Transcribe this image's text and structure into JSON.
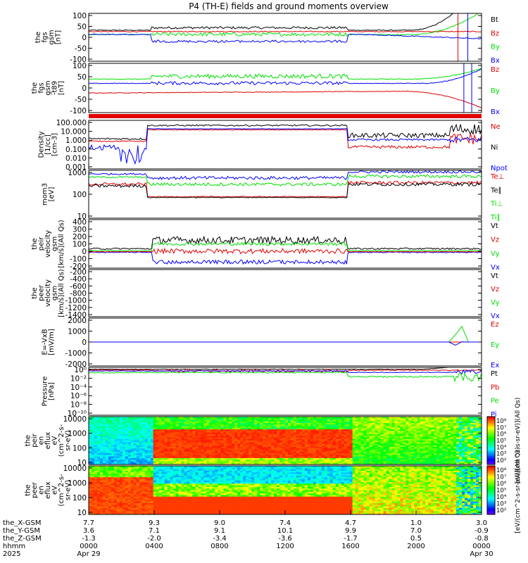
{
  "title": "P4 (TH-E) fields and ground moments overview",
  "colors": {
    "black": "#000000",
    "red": "#e00000",
    "green": "#00e000",
    "blue": "#0000ff"
  },
  "chart_data": {
    "type": "line",
    "x_range": [
      "2025-04-29 00:00",
      "2025-04-30 00:00"
    ],
    "panels": [
      {
        "id": "fgs",
        "ylabel": [
          "the",
          "fgs",
          "gsm",
          "[nT]"
        ],
        "ylim": [
          -100,
          100
        ],
        "yticks": [
          "100",
          "50",
          "0",
          "-50",
          "-100"
        ],
        "legend": [
          "Bt",
          "Bz",
          "By",
          "Bx"
        ],
        "legend_colors": [
          "black",
          "red",
          "green",
          "blue"
        ]
      },
      {
        "id": "fgs-t89",
        "ylabel": [
          "the",
          "fgs",
          "gsm",
          "-t89",
          "[nT]"
        ],
        "ylim": [
          -130,
          100
        ],
        "yticks": [
          "100",
          "50",
          "0",
          "-50",
          "-100"
        ],
        "legend": [
          "Bz",
          "By",
          "Bx"
        ],
        "legend_colors": [
          "red",
          "green",
          "blue"
        ]
      },
      {
        "id": "density",
        "ylabel": [
          "Density",
          "[1/cc]",
          "[cm-3]"
        ],
        "ylim": [
          0.001,
          100
        ],
        "scale": "log",
        "yticks": [
          "100.000",
          "10.000",
          "1.000",
          "0.100",
          "0.010",
          "0.001"
        ],
        "legend": [
          "Ne",
          "Ni",
          "Npot"
        ],
        "legend_colors": [
          "red",
          "black",
          "blue"
        ]
      },
      {
        "id": "temperature",
        "ylabel": [
          "mom3",
          "[eV]"
        ],
        "ylim": [
          3,
          3000
        ],
        "scale": "log",
        "yticks": [
          "1000",
          "100",
          "10"
        ],
        "legend": [
          "Te⊥",
          "Te∥",
          "Ti⊥",
          "Ti∥"
        ],
        "legend_colors": [
          "red",
          "black",
          "green",
          "green"
        ]
      },
      {
        "id": "peir-velocity",
        "ylabel": [
          "the",
          "peir",
          "velocity",
          "gsm",
          "[km/s](All Qs)"
        ],
        "ylim": [
          -200,
          400
        ],
        "yticks": [
          "400",
          "300",
          "200",
          "100",
          "0",
          "-100",
          "-200"
        ],
        "legend": [
          "Vt",
          "Vz",
          "Vy",
          "Vx"
        ],
        "legend_colors": [
          "black",
          "red",
          "green",
          "blue"
        ]
      },
      {
        "id": "peer-velocity",
        "ylabel": [
          "the",
          "peer",
          "velocity",
          "gsm",
          "[km/s](All Qs)"
        ],
        "ylim": [
          -1400,
          -100
        ],
        "yticks": [
          "-200",
          "-400",
          "-600",
          "-800",
          "-1000",
          "-1200",
          "-1400"
        ],
        "legend": [
          "Vt",
          "Vz",
          "Vy",
          "Vx"
        ],
        "legend_colors": [
          "black",
          "red",
          "green",
          "blue"
        ]
      },
      {
        "id": "e-vxb",
        "ylabel": [
          "E=-VxB",
          "[mV/m]"
        ],
        "ylim": [
          -2000,
          2000
        ],
        "yticks": [
          "2000",
          "1000",
          "0",
          "-1000",
          "-2000"
        ],
        "legend": [
          "Ez",
          "Ey",
          "Ex"
        ],
        "legend_colors": [
          "red",
          "green",
          "blue"
        ]
      },
      {
        "id": "pressure",
        "ylabel": [
          "Pressure",
          "[nPa]"
        ],
        "ylim": [
          1e-10,
          1
        ],
        "scale": "log",
        "yticks": [
          "10⁰",
          "10⁻²",
          "10⁻⁴",
          "10⁻⁶",
          "10⁻⁸",
          "10⁻¹⁰"
        ],
        "legend": [
          "Pt",
          "Pb",
          "Pe",
          "Pi"
        ],
        "legend_colors": [
          "black",
          "red",
          "green",
          "blue"
        ]
      },
      {
        "id": "peir-eflux",
        "type": "heatmap",
        "ylabel": [
          "the",
          "peir",
          "en",
          "eflux",
          "eV",
          "(cm^2-s-",
          "sr-eV)"
        ],
        "ylim": [
          10,
          20000
        ],
        "yticks": [
          "10000",
          "1000",
          "100",
          "10"
        ],
        "colorbar_label": "[eV/(cm^2-s-sr-eV)](All Qs)",
        "colorbar_ticks": [
          "10⁸",
          "10⁷",
          "10⁶",
          "10⁵",
          "10⁴",
          "10³",
          "10²"
        ]
      },
      {
        "id": "peer-eflux",
        "type": "heatmap",
        "ylabel": [
          "the",
          "peer",
          "en",
          "eflux",
          "eV",
          "(cm^2-s-",
          "sr-eV)"
        ],
        "ylim": [
          10,
          20000
        ],
        "yticks": [
          "10000",
          "1000",
          "100",
          "10"
        ],
        "colorbar_label": "[eV/(cm^2-s-sr-eV)](All Qs)",
        "colorbar_ticks": [
          "10⁸",
          "10⁷",
          "10⁶",
          "10⁵",
          "10⁴",
          "10³",
          "10²"
        ]
      }
    ],
    "xaxis": {
      "row_labels": [
        "the_X-GSM",
        "the_Y-GSM",
        "the_Z-GSM",
        "hhmm",
        "2025"
      ],
      "ticks": [
        {
          "x": "7.7",
          "y": "3.6",
          "z": "-1.3",
          "hhmm": "0000",
          "date": "Apr 29"
        },
        {
          "x": "9.3",
          "y": "7.1",
          "z": "-2.0",
          "hhmm": "0400",
          "date": ""
        },
        {
          "x": "9.0",
          "y": "9.1",
          "z": "-3.4",
          "hhmm": "0800",
          "date": ""
        },
        {
          "x": "7.4",
          "y": "10.1",
          "z": "-3.6",
          "hhmm": "1200",
          "date": ""
        },
        {
          "x": "4.7",
          "y": "9.9",
          "z": "-1.7",
          "hhmm": "1600",
          "date": ""
        },
        {
          "x": "1.0",
          "y": "7.0",
          "z": "0.5",
          "hhmm": "2000",
          "date": ""
        },
        {
          "x": "3.0",
          "y": "-0.9",
          "z": "-0.8",
          "hhmm": "0000",
          "date": "Apr 30"
        }
      ]
    }
  }
}
